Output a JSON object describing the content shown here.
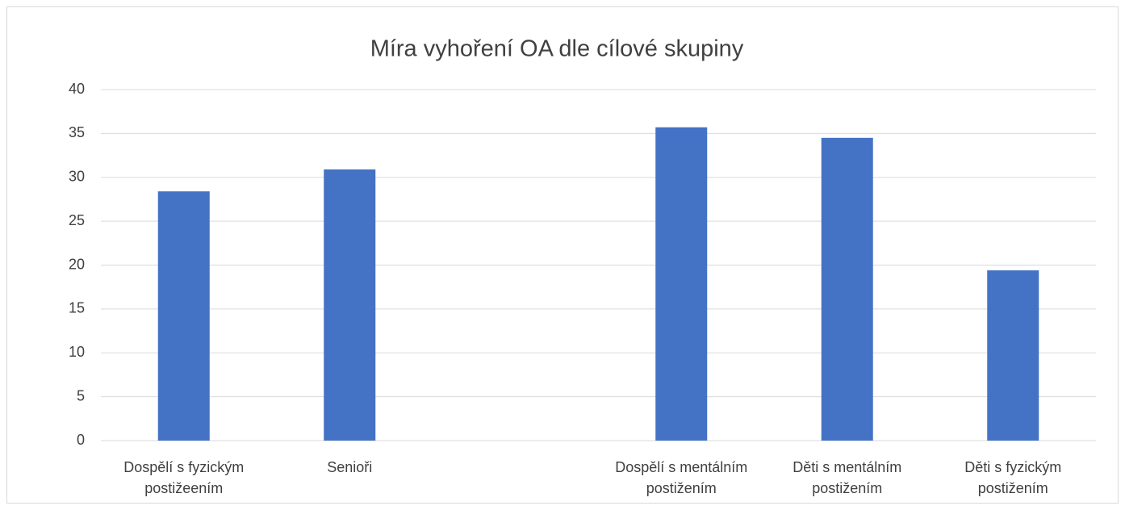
{
  "chart_data": {
    "type": "bar",
    "title": "Míra vyhoření OA dle cílové skupiny",
    "categories": [
      "Dospělí s fyzickým postižeením",
      "Senioři",
      null,
      "Dospělí s mentálním postižením",
      "Děti s mentálním postižením",
      "Děti s fyzickým postižením"
    ],
    "values": [
      28.4,
      30.9,
      null,
      35.7,
      34.5,
      19.4
    ],
    "color": "#4472c4",
    "ylim": [
      0,
      40
    ],
    "yticks": [
      0,
      5,
      10,
      15,
      20,
      25,
      30,
      35,
      40
    ],
    "grid": true
  }
}
